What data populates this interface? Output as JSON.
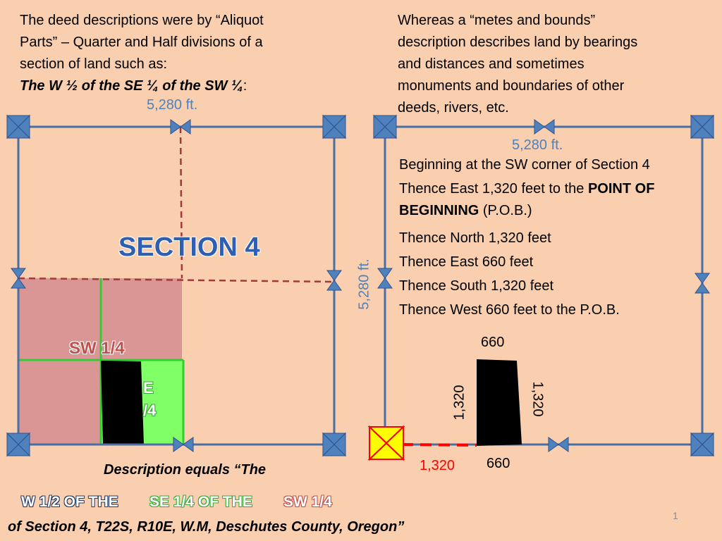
{
  "left_text": {
    "line1": "The deed descriptions were by “Aliquot",
    "line2": "Parts” – Quarter and Half divisions of a",
    "line3": "section of land such as:",
    "emphasis": "The W ½ of the SE ¼ of the SW ¼",
    "emphasis_tail": ":"
  },
  "right_text": {
    "line1": "Whereas a “metes and bounds”",
    "line2": "description describes land by bearings",
    "line3": "and distances and sometimes",
    "line4": "monuments and boundaries of other",
    "line5": "deeds, rivers, etc."
  },
  "left_diagram": {
    "top_distance": "5,280 ft.",
    "section_label": "SECTION 4",
    "sw_label": "SW 1/4",
    "se_label_partial_1": "E",
    "se_label_partial_2": "/4"
  },
  "right_diagram": {
    "top_distance": "5,280 ft.",
    "side_distance": "5,280 ft.",
    "desc_1": "Beginning at the SW corner of Section 4",
    "desc_2a": "Thence East 1,320 feet to the ",
    "desc_2b": "POINT OF",
    "desc_3a": "BEGINNING",
    "desc_3b": " (P.O.B.)",
    "desc_4": "Thence North 1,320 feet",
    "desc_5": "Thence East 660 feet",
    "desc_6": "Thence South 1,320 feet",
    "desc_7": "Thence West 660 feet to the P.O.B.",
    "dim_top": "660",
    "dim_bottom": "660",
    "dim_left": "1,320",
    "dim_right": "1,320",
    "dim_red": "1,320"
  },
  "bottom": {
    "desc_equals": "Description equals “The",
    "part1": "W 1/2 OF THE",
    "part2": "SE 1/4 OF THE",
    "part3": "SW 1/4",
    "location": "of Section 4, T22S, R10E, W.M, Deschutes County, Oregon”",
    "page_number": "1"
  },
  "colors": {
    "background": "#f9cfaf",
    "line_blue": "#4a6fa5",
    "accent_blue": "#4f81bd",
    "section_title": "#2e5fb0",
    "sw_fill": "#d99694",
    "se_fill": "#80ff66",
    "dashed_red": "#a33a3a",
    "pob_red": "#ff0000",
    "pob_yellow": "#ffff00"
  }
}
